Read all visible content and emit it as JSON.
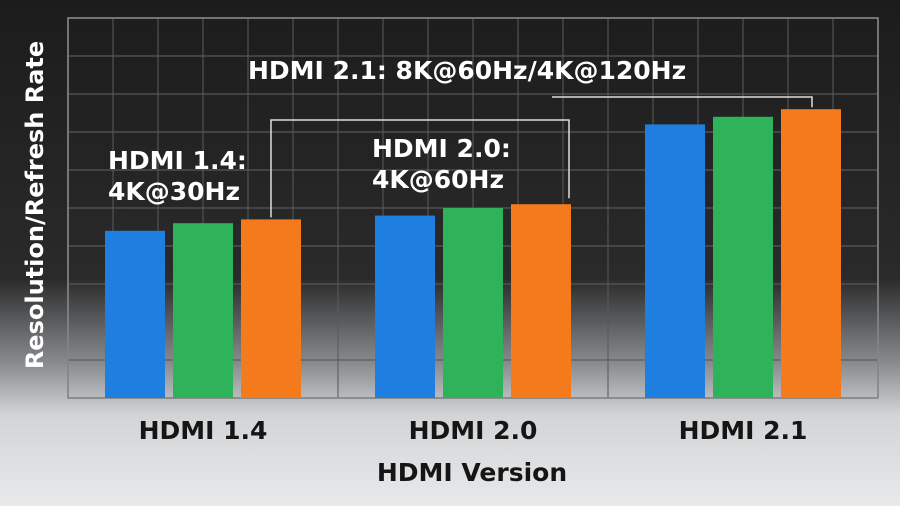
{
  "chart_data": {
    "type": "bar",
    "y_label": "Resolution/Refresh Rate",
    "x_label": "HDMI Version",
    "categories": [
      "HDMI 1.4",
      "HDMI 2.0",
      "HDMI 2.1"
    ],
    "series": [
      {
        "color": "#1f7fe0",
        "values": [
          4.4,
          4.8,
          7.2
        ]
      },
      {
        "color": "#2fb35a",
        "values": [
          4.6,
          5.0,
          7.4
        ]
      },
      {
        "color": "#f57a1c",
        "values": [
          4.7,
          5.1,
          7.6
        ]
      }
    ],
    "ylim": [
      0,
      10
    ],
    "yticks": [
      0,
      1,
      2,
      3,
      4,
      5,
      6,
      7,
      8,
      9,
      10
    ],
    "grid": true,
    "annotations": [
      {
        "lines": [
          "HDMI 1.4:",
          "4K@30Hz"
        ]
      },
      {
        "lines": [
          "HDMI 2.0:",
          "4K@60Hz"
        ]
      },
      {
        "lines": [
          "HDMI 2.1: 8K@60Hz/4K@120Hz"
        ]
      }
    ]
  }
}
